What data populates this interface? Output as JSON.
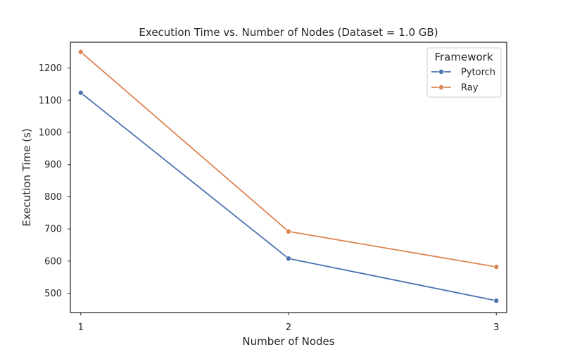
{
  "chart_data": {
    "type": "line",
    "title": "Execution Time vs. Number of Nodes (Dataset = 1.0 GB)",
    "xlabel": "Number of Nodes",
    "ylabel": "Execution Time (s)",
    "x": [
      1,
      2,
      3
    ],
    "x_ticks": [
      "1",
      "2",
      "3"
    ],
    "y_ticks": [
      "500",
      "600",
      "700",
      "800",
      "900",
      "1000",
      "1100",
      "1200"
    ],
    "y_tick_values": [
      500,
      600,
      700,
      800,
      900,
      1000,
      1100,
      1200
    ],
    "xlim": [
      0.95,
      3.05
    ],
    "ylim": [
      440,
      1280
    ],
    "grid": false,
    "legend": {
      "title": "Framework",
      "placement": "top-right"
    },
    "series": [
      {
        "name": "Pytorch",
        "color": "#4c72b0",
        "values": [
          1123,
          608,
          477
        ]
      },
      {
        "name": "Ray",
        "color": "#dd8452",
        "values": [
          1250,
          692,
          582
        ]
      }
    ]
  }
}
